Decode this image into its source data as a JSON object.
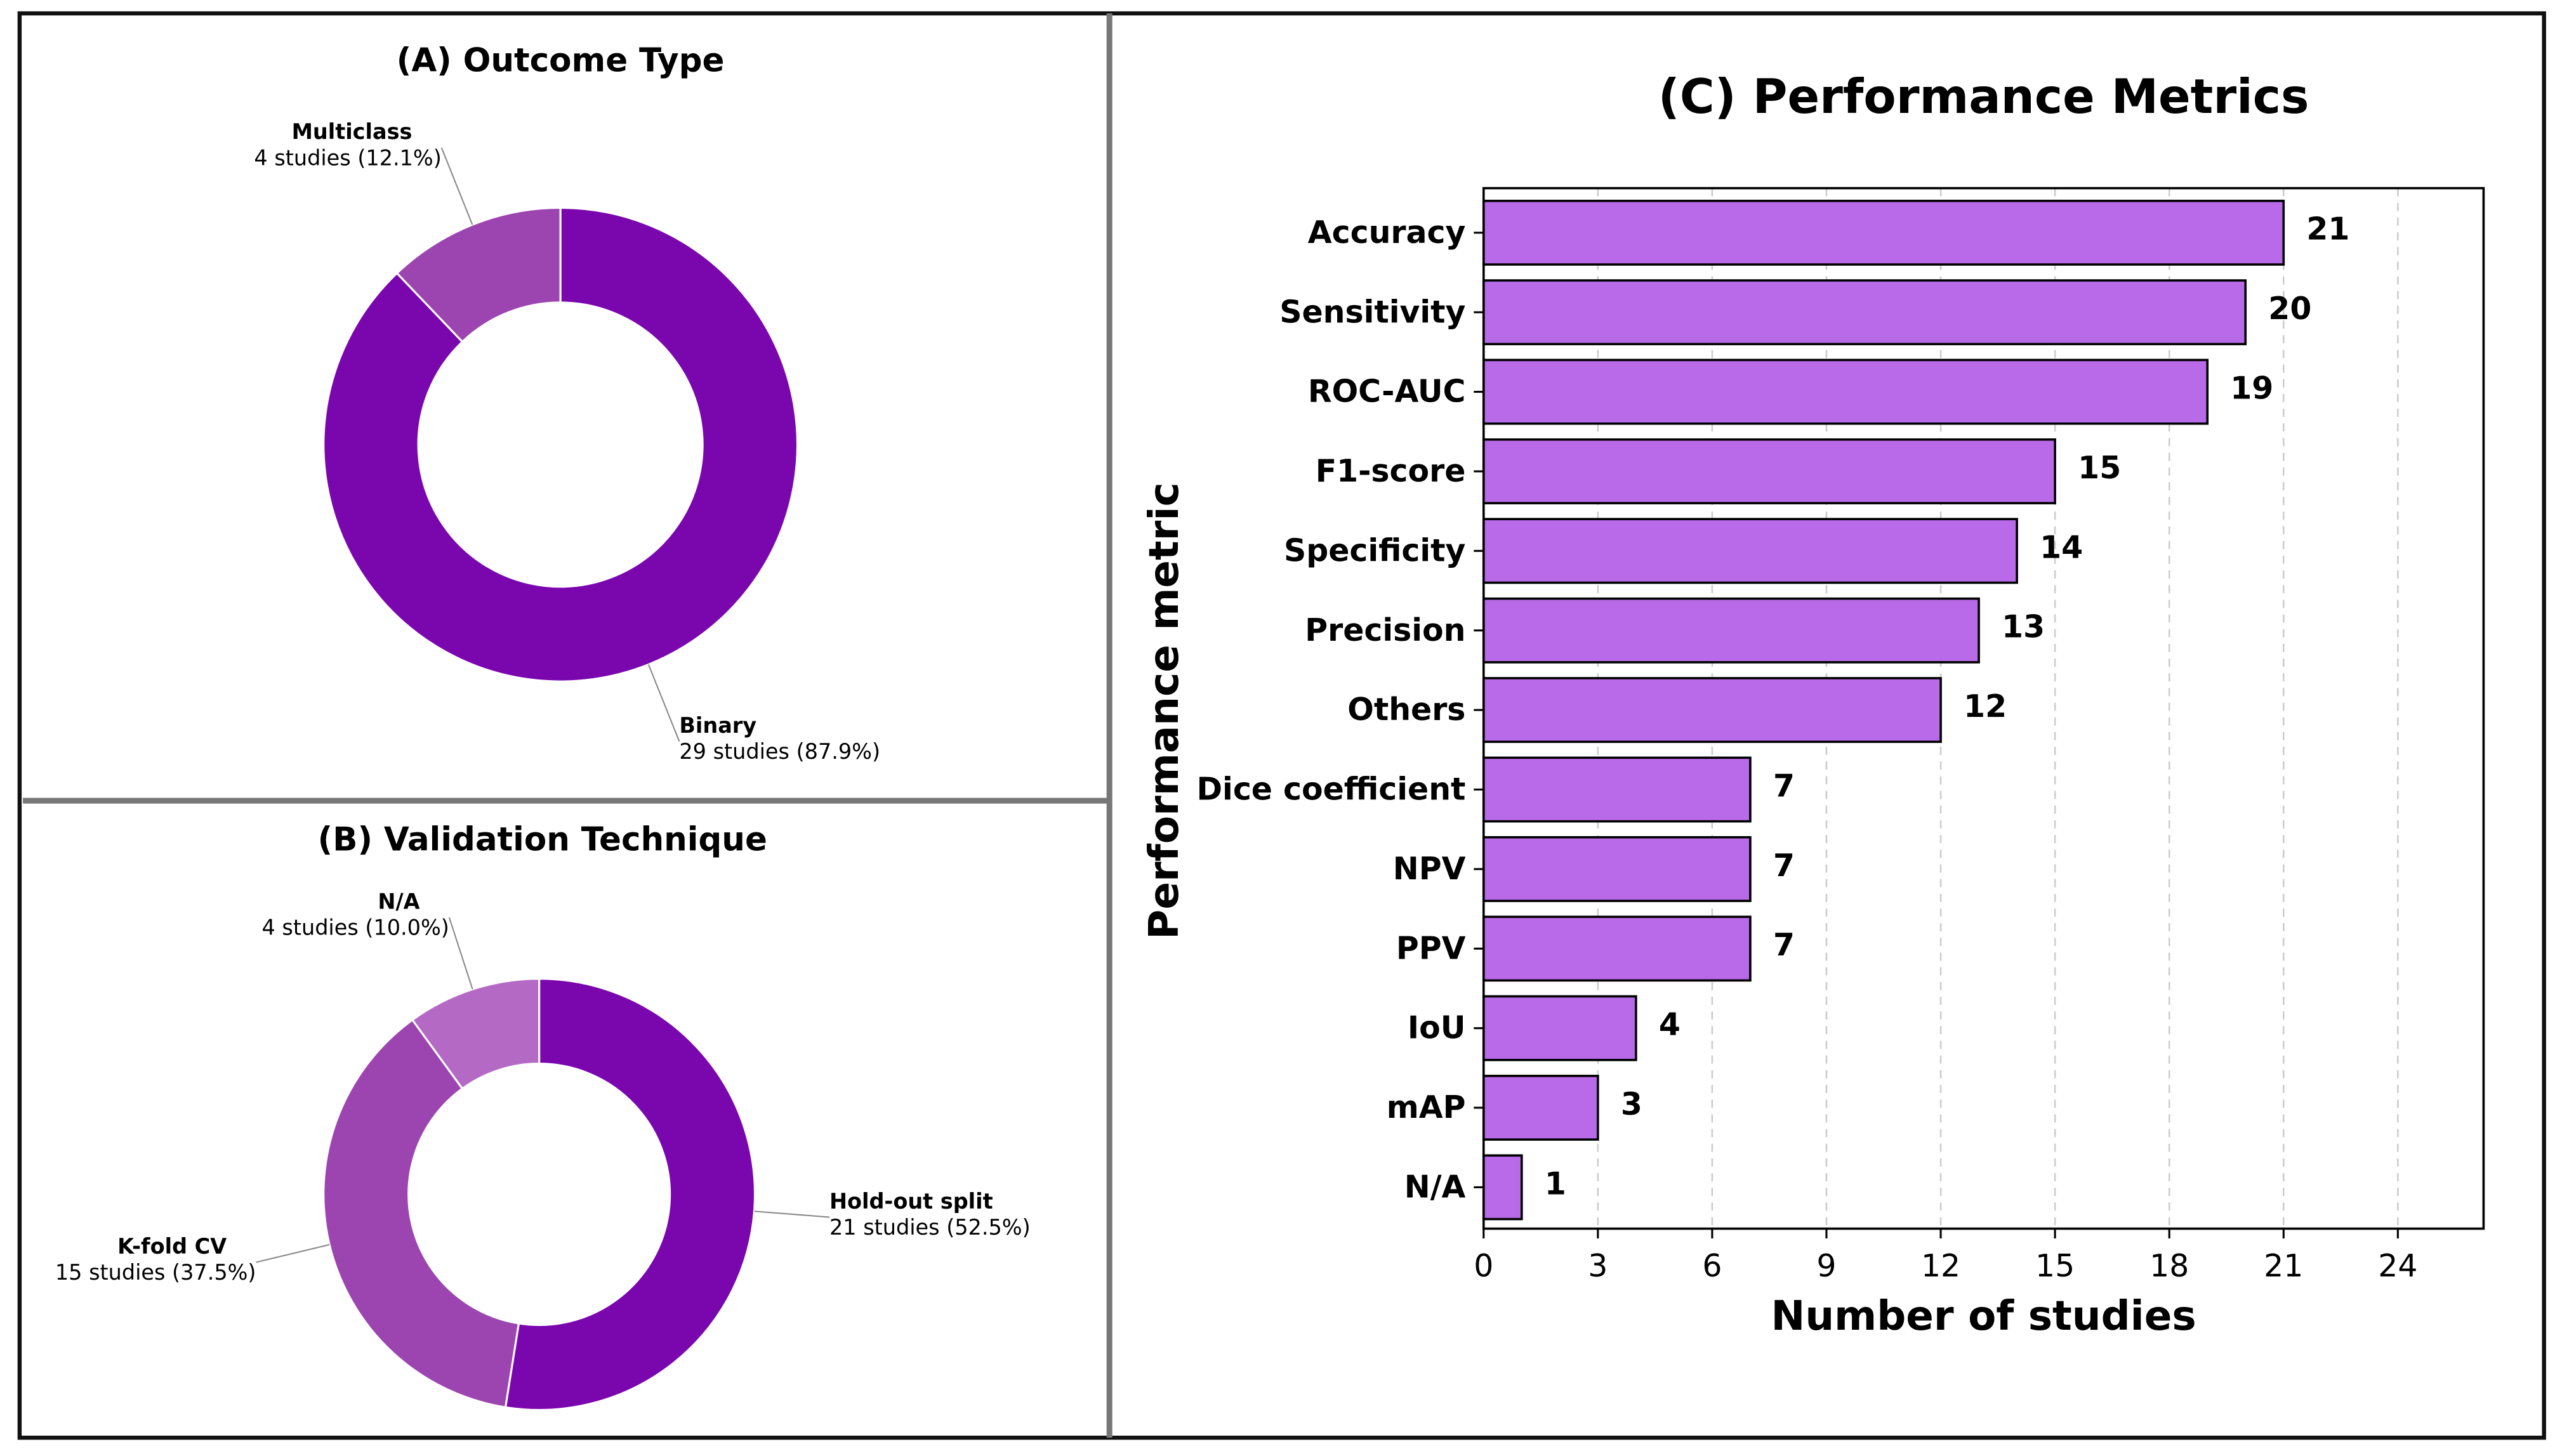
{
  "chart_data": [
    {
      "type": "pie",
      "title": "(A) Outcome Type",
      "categories": [
        "Binary",
        "Multiclass"
      ],
      "values": [
        29,
        4
      ],
      "value_labels": [
        "29 studies (87.9%)",
        "4 studies (12.1%)"
      ],
      "colors": [
        "#7a06ae",
        "#9c45b0"
      ],
      "donut": true
    },
    {
      "type": "pie",
      "title": "(B) Validation Technique",
      "categories": [
        "Hold-out split",
        "K-fold CV",
        "N/A"
      ],
      "values": [
        21,
        15,
        4
      ],
      "value_labels": [
        "21 studies (52.5%)",
        "15 studies (37.5%)",
        "4 studies (10.0%)"
      ],
      "colors": [
        "#7a06ae",
        "#9c45b0",
        "#b46ac4"
      ],
      "donut": true
    },
    {
      "type": "bar",
      "orientation": "horizontal",
      "title": "(C) Performance Metrics",
      "x_label": "Number of studies",
      "y_label": "Performance metric",
      "categories": [
        "Accuracy",
        "Sensitivity",
        "ROC-AUC",
        "F1-score",
        "Specificity",
        "Precision",
        "Others",
        "Dice coefficient",
        "NPV",
        "PPV",
        "IoU",
        "mAP",
        "N/A"
      ],
      "values": [
        21,
        20,
        19,
        15,
        14,
        13,
        12,
        7,
        7,
        7,
        4,
        3,
        1
      ],
      "color": "#b86ae8",
      "xlim": [
        0,
        26.25
      ],
      "xticks": [
        0,
        3,
        6,
        9,
        12,
        15,
        18,
        21,
        24
      ],
      "grid": true
    }
  ]
}
